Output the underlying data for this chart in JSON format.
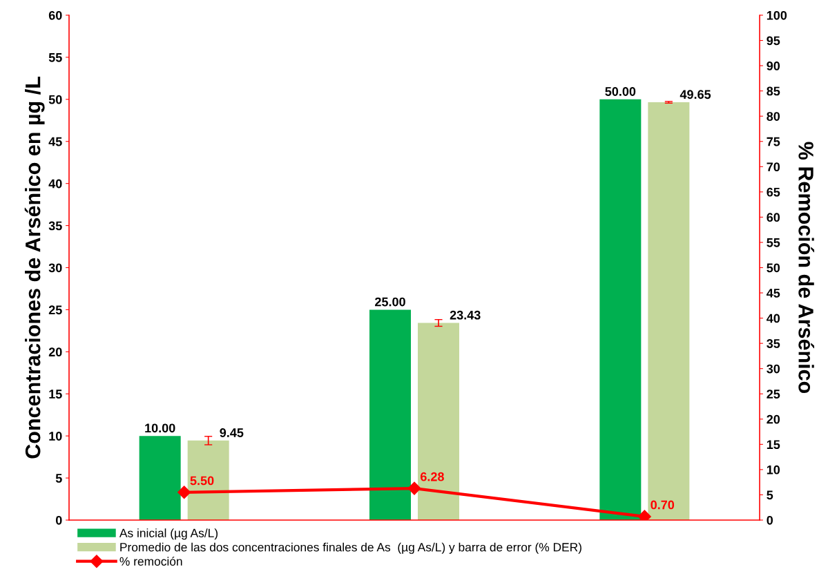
{
  "chart_data": {
    "type": "bar",
    "ylabel": "Concentraciones de Arsénico en µg /L",
    "y2label": "% Remoción de Arsénico",
    "categories": [
      null,
      null,
      null
    ],
    "series": [
      {
        "name": "As inicial (µg As/L)",
        "color": "#00b050",
        "values": [
          10.0,
          25.0,
          50.0
        ],
        "value_labels": [
          "10.00",
          "25.00",
          "50.00"
        ]
      },
      {
        "name": "Promedio de las dos concentraciones finales de As  (µg As/L) y barra de error (% DER)",
        "color": "#c4d79b",
        "values": [
          9.45,
          23.43,
          49.65
        ],
        "value_labels": [
          "9.45",
          "23.43",
          "49.65"
        ],
        "errors": [
          0.5,
          0.4,
          0.1
        ]
      },
      {
        "name": "% remoción",
        "type": "line",
        "axis": "y2",
        "color": "#ff0000",
        "marker": "diamond",
        "values": [
          5.5,
          6.28,
          0.7
        ],
        "value_labels": [
          "5.50",
          "6.28",
          "0.70"
        ]
      }
    ],
    "ylim": [
      0,
      60
    ],
    "yticks": [
      0,
      5,
      10,
      15,
      20,
      25,
      30,
      35,
      40,
      45,
      50,
      55,
      60
    ],
    "y2lim": [
      0,
      100
    ],
    "y2ticks": [
      0,
      5,
      10,
      15,
      20,
      25,
      30,
      35,
      40,
      45,
      50,
      55,
      60,
      65,
      70,
      75,
      80,
      85,
      90,
      95,
      100
    ],
    "tick_labels": "y",
    "grid": false,
    "legend": "bottom"
  }
}
